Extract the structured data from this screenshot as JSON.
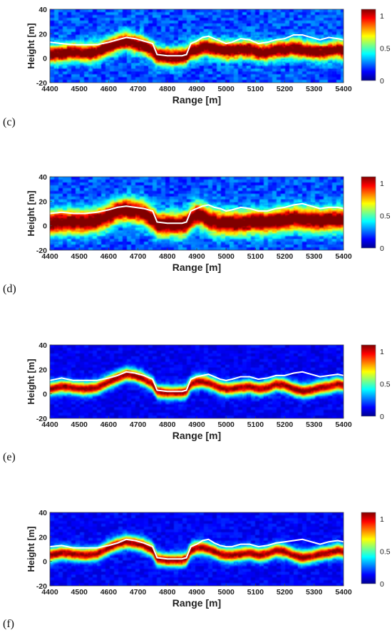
{
  "colors": {
    "colormap": [
      "#00008f",
      "#0000ff",
      "#0080ff",
      "#00ffff",
      "#80ff80",
      "#ffff00",
      "#ff8000",
      "#ff0000",
      "#800000"
    ],
    "ground_truth_line": "#ffffff",
    "axis_text": "#222222"
  },
  "chart_data": [
    {
      "type": "heatmap",
      "panel_label": "(c)",
      "xlabel": "Range [m]",
      "ylabel": "Height [m]",
      "xlim": [
        4400,
        5400
      ],
      "ylim": [
        -20,
        40
      ],
      "xticks": [
        "4400",
        "4500",
        "4600",
        "4700",
        "4800",
        "4900",
        "5000",
        "5100",
        "5200",
        "5300",
        "5400"
      ],
      "yticks": [
        "-20",
        "0",
        "20",
        "40"
      ],
      "colorbar": {
        "min": 0,
        "max": 1.1,
        "ticks": [
          "0",
          "0.5",
          "1"
        ]
      },
      "white_line": [
        [
          4400,
          13
        ],
        [
          4440,
          12
        ],
        [
          4480,
          11
        ],
        [
          4520,
          11
        ],
        [
          4560,
          11
        ],
        [
          4600,
          13
        ],
        [
          4630,
          15
        ],
        [
          4660,
          17
        ],
        [
          4690,
          16
        ],
        [
          4720,
          14
        ],
        [
          4750,
          12
        ],
        [
          4765,
          3
        ],
        [
          4800,
          2
        ],
        [
          4850,
          2
        ],
        [
          4865,
          3
        ],
        [
          4880,
          12
        ],
        [
          4900,
          14
        ],
        [
          4920,
          17
        ],
        [
          4940,
          18
        ],
        [
          4960,
          16
        ],
        [
          4980,
          14
        ],
        [
          5000,
          12
        ],
        [
          5020,
          13
        ],
        [
          5050,
          16
        ],
        [
          5080,
          15
        ],
        [
          5110,
          12
        ],
        [
          5140,
          13
        ],
        [
          5170,
          15
        ],
        [
          5200,
          16
        ],
        [
          5230,
          19
        ],
        [
          5260,
          19
        ],
        [
          5290,
          17
        ],
        [
          5320,
          15
        ],
        [
          5350,
          17
        ],
        [
          5380,
          16
        ],
        [
          5400,
          15
        ]
      ],
      "high_band": [
        [
          4400,
          3
        ],
        [
          4440,
          4
        ],
        [
          4480,
          5
        ],
        [
          4520,
          4
        ],
        [
          4560,
          5
        ],
        [
          4600,
          9
        ],
        [
          4630,
          12
        ],
        [
          4660,
          14
        ],
        [
          4690,
          12
        ],
        [
          4720,
          10
        ],
        [
          4750,
          6
        ],
        [
          4765,
          2
        ],
        [
          4800,
          1
        ],
        [
          4850,
          1
        ],
        [
          4865,
          2
        ],
        [
          4880,
          6
        ],
        [
          4900,
          7
        ],
        [
          4920,
          9
        ],
        [
          4940,
          9
        ],
        [
          4960,
          8
        ],
        [
          4980,
          7
        ],
        [
          5000,
          6
        ],
        [
          5020,
          6
        ],
        [
          5050,
          7
        ],
        [
          5080,
          7
        ],
        [
          5110,
          5
        ],
        [
          5140,
          5
        ],
        [
          5170,
          7
        ],
        [
          5200,
          7
        ],
        [
          5230,
          8
        ],
        [
          5260,
          7
        ],
        [
          5290,
          6
        ],
        [
          5320,
          5
        ],
        [
          5350,
          6
        ],
        [
          5380,
          7
        ],
        [
          5400,
          6
        ]
      ],
      "band_thickness_m": 8,
      "band_strength": 1.0,
      "background_level": 0.22,
      "speckle": 0.25
    },
    {
      "type": "heatmap",
      "panel_label": "(d)",
      "xlabel": "Range [m]",
      "ylabel": "Height [m]",
      "xlim": [
        4400,
        5400
      ],
      "ylim": [
        -20,
        40
      ],
      "xticks": [
        "4400",
        "4500",
        "4600",
        "4700",
        "4800",
        "4900",
        "5000",
        "5100",
        "5200",
        "5300",
        "5400"
      ],
      "yticks": [
        "-20",
        "0",
        "20",
        "40"
      ],
      "colorbar": {
        "min": 0,
        "max": 1.1,
        "ticks": [
          "0",
          "0.5",
          "1"
        ]
      },
      "white_line": [
        [
          4400,
          10
        ],
        [
          4440,
          11
        ],
        [
          4480,
          10
        ],
        [
          4520,
          10
        ],
        [
          4560,
          11
        ],
        [
          4600,
          13
        ],
        [
          4630,
          15
        ],
        [
          4660,
          16
        ],
        [
          4690,
          15
        ],
        [
          4720,
          14
        ],
        [
          4750,
          12
        ],
        [
          4765,
          3
        ],
        [
          4800,
          2
        ],
        [
          4850,
          2
        ],
        [
          4865,
          3
        ],
        [
          4880,
          12
        ],
        [
          4900,
          14
        ],
        [
          4920,
          16
        ],
        [
          4940,
          17
        ],
        [
          4960,
          15
        ],
        [
          4980,
          14
        ],
        [
          5000,
          12
        ],
        [
          5020,
          13
        ],
        [
          5050,
          15
        ],
        [
          5080,
          14
        ],
        [
          5110,
          12
        ],
        [
          5140,
          12
        ],
        [
          5170,
          14
        ],
        [
          5200,
          15
        ],
        [
          5230,
          17
        ],
        [
          5260,
          18
        ],
        [
          5290,
          16
        ],
        [
          5320,
          14
        ],
        [
          5350,
          15
        ],
        [
          5380,
          15
        ],
        [
          5400,
          14
        ]
      ],
      "high_band": [
        [
          4400,
          2
        ],
        [
          4440,
          3
        ],
        [
          4480,
          3
        ],
        [
          4520,
          3
        ],
        [
          4560,
          4
        ],
        [
          4600,
          8
        ],
        [
          4630,
          12
        ],
        [
          4660,
          13
        ],
        [
          4690,
          12
        ],
        [
          4720,
          10
        ],
        [
          4750,
          5
        ],
        [
          4765,
          1
        ],
        [
          4800,
          1
        ],
        [
          4850,
          1
        ],
        [
          4865,
          2
        ],
        [
          4880,
          6
        ],
        [
          4900,
          9
        ],
        [
          4920,
          8
        ],
        [
          4940,
          5
        ],
        [
          4960,
          3
        ],
        [
          4980,
          2
        ],
        [
          5000,
          2
        ],
        [
          5020,
          2
        ],
        [
          5050,
          2
        ],
        [
          5080,
          3
        ],
        [
          5110,
          3
        ],
        [
          5140,
          3
        ],
        [
          5170,
          4
        ],
        [
          5200,
          5
        ],
        [
          5230,
          6
        ],
        [
          5260,
          5
        ],
        [
          5290,
          5
        ],
        [
          5320,
          4
        ],
        [
          5350,
          5
        ],
        [
          5380,
          5
        ],
        [
          5400,
          5
        ]
      ],
      "band_thickness_m": 11,
      "band_strength": 1.0,
      "background_level": 0.22,
      "speckle": 0.12
    },
    {
      "type": "heatmap",
      "panel_label": "(e)",
      "xlabel": "Range [m]",
      "ylabel": "Height [m]",
      "xlim": [
        4400,
        5400
      ],
      "ylim": [
        -20,
        40
      ],
      "xticks": [
        "4400",
        "4500",
        "4600",
        "4700",
        "4800",
        "4900",
        "5000",
        "5100",
        "5200",
        "5300",
        "5400"
      ],
      "yticks": [
        "-20",
        "0",
        "20",
        "40"
      ],
      "colorbar": {
        "min": 0,
        "max": 1.1,
        "ticks": [
          "0",
          "0.5",
          "1"
        ]
      },
      "white_line": [
        [
          4400,
          11
        ],
        [
          4440,
          13
        ],
        [
          4480,
          11
        ],
        [
          4520,
          11
        ],
        [
          4560,
          11
        ],
        [
          4600,
          13
        ],
        [
          4630,
          15
        ],
        [
          4660,
          18
        ],
        [
          4690,
          17
        ],
        [
          4720,
          15
        ],
        [
          4750,
          12
        ],
        [
          4765,
          3
        ],
        [
          4800,
          2
        ],
        [
          4850,
          2
        ],
        [
          4865,
          3
        ],
        [
          4880,
          12
        ],
        [
          4900,
          14
        ],
        [
          4920,
          15
        ],
        [
          4940,
          16
        ],
        [
          4960,
          14
        ],
        [
          4980,
          12
        ],
        [
          5000,
          11
        ],
        [
          5020,
          12
        ],
        [
          5050,
          14
        ],
        [
          5080,
          14
        ],
        [
          5110,
          12
        ],
        [
          5140,
          13
        ],
        [
          5170,
          15
        ],
        [
          5200,
          15
        ],
        [
          5230,
          17
        ],
        [
          5260,
          18
        ],
        [
          5290,
          16
        ],
        [
          5320,
          14
        ],
        [
          5350,
          15
        ],
        [
          5380,
          16
        ],
        [
          5400,
          15
        ]
      ],
      "high_band": [
        [
          4400,
          4
        ],
        [
          4440,
          6
        ],
        [
          4480,
          5
        ],
        [
          4520,
          4
        ],
        [
          4560,
          5
        ],
        [
          4600,
          10
        ],
        [
          4630,
          13
        ],
        [
          4660,
          16
        ],
        [
          4690,
          15
        ],
        [
          4720,
          12
        ],
        [
          4750,
          8
        ],
        [
          4765,
          2
        ],
        [
          4800,
          1
        ],
        [
          4850,
          1
        ],
        [
          4865,
          2
        ],
        [
          4880,
          8
        ],
        [
          4900,
          10
        ],
        [
          4920,
          10
        ],
        [
          4940,
          9
        ],
        [
          4960,
          7
        ],
        [
          4980,
          5
        ],
        [
          5000,
          4
        ],
        [
          5020,
          4
        ],
        [
          5050,
          5
        ],
        [
          5080,
          6
        ],
        [
          5110,
          4
        ],
        [
          5140,
          5
        ],
        [
          5170,
          8
        ],
        [
          5200,
          7
        ],
        [
          5230,
          4
        ],
        [
          5260,
          2
        ],
        [
          5290,
          3
        ],
        [
          5320,
          5
        ],
        [
          5350,
          6
        ],
        [
          5380,
          8
        ],
        [
          5400,
          7
        ]
      ],
      "band_thickness_m": 6,
      "band_strength": 0.95,
      "background_level": 0.12,
      "speckle": 0.15
    },
    {
      "type": "heatmap",
      "panel_label": "(f)",
      "xlabel": "Range [m]",
      "ylabel": "Height [m]",
      "xlim": [
        4400,
        5400
      ],
      "ylim": [
        -20,
        40
      ],
      "xticks": [
        "4400",
        "4500",
        "4600",
        "4700",
        "4800",
        "4900",
        "5000",
        "5100",
        "5200",
        "5300",
        "5400"
      ],
      "yticks": [
        "-20",
        "0",
        "20",
        "40"
      ],
      "colorbar": {
        "min": 0,
        "max": 1.1,
        "ticks": [
          "0",
          "0.5",
          "1"
        ]
      },
      "white_line": [
        [
          4400,
          12
        ],
        [
          4440,
          13
        ],
        [
          4480,
          11
        ],
        [
          4520,
          11
        ],
        [
          4560,
          11
        ],
        [
          4600,
          13
        ],
        [
          4630,
          15
        ],
        [
          4660,
          18
        ],
        [
          4690,
          17
        ],
        [
          4720,
          15
        ],
        [
          4750,
          12
        ],
        [
          4765,
          3
        ],
        [
          4800,
          2
        ],
        [
          4850,
          2
        ],
        [
          4865,
          3
        ],
        [
          4880,
          12
        ],
        [
          4900,
          14
        ],
        [
          4920,
          17
        ],
        [
          4940,
          18
        ],
        [
          4960,
          15
        ],
        [
          4980,
          13
        ],
        [
          5000,
          12
        ],
        [
          5020,
          12
        ],
        [
          5050,
          14
        ],
        [
          5080,
          14
        ],
        [
          5110,
          12
        ],
        [
          5140,
          13
        ],
        [
          5170,
          15
        ],
        [
          5200,
          16
        ],
        [
          5230,
          17
        ],
        [
          5260,
          18
        ],
        [
          5290,
          16
        ],
        [
          5320,
          14
        ],
        [
          5350,
          16
        ],
        [
          5380,
          17
        ],
        [
          5400,
          16
        ]
      ],
      "high_band": [
        [
          4400,
          5
        ],
        [
          4440,
          7
        ],
        [
          4480,
          6
        ],
        [
          4520,
          5
        ],
        [
          4560,
          6
        ],
        [
          4600,
          11
        ],
        [
          4630,
          14
        ],
        [
          4660,
          16
        ],
        [
          4690,
          15
        ],
        [
          4720,
          13
        ],
        [
          4750,
          9
        ],
        [
          4765,
          2
        ],
        [
          4800,
          1
        ],
        [
          4850,
          1
        ],
        [
          4865,
          2
        ],
        [
          4880,
          9
        ],
        [
          4900,
          11
        ],
        [
          4920,
          11
        ],
        [
          4940,
          10
        ],
        [
          4960,
          8
        ],
        [
          4980,
          6
        ],
        [
          5000,
          5
        ],
        [
          5020,
          5
        ],
        [
          5050,
          6
        ],
        [
          5080,
          7
        ],
        [
          5110,
          5
        ],
        [
          5140,
          6
        ],
        [
          5170,
          9
        ],
        [
          5200,
          8
        ],
        [
          5230,
          5
        ],
        [
          5260,
          3
        ],
        [
          5290,
          4
        ],
        [
          5320,
          6
        ],
        [
          5350,
          7
        ],
        [
          5380,
          9
        ],
        [
          5400,
          8
        ]
      ],
      "band_thickness_m": 6,
      "band_strength": 0.95,
      "background_level": 0.13,
      "speckle": 0.15
    }
  ]
}
